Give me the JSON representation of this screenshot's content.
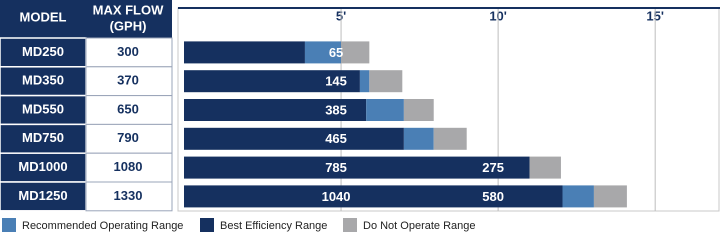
{
  "chart_data": {
    "type": "bar",
    "orientation": "horizontal",
    "stacked": true,
    "model_header": "MODEL",
    "max_flow_header": [
      "MAX FLOW",
      "(GPH)"
    ],
    "categories": [
      "MD250",
      "MD350",
      "MD550",
      "MD750",
      "MD1000",
      "MD1250"
    ],
    "max_flow": [
      300,
      370,
      650,
      790,
      1080,
      1330
    ],
    "series": [
      {
        "name": "Recommended Operating Range",
        "color": "#4a7fb5",
        "values": [
          1.15,
          0.3,
          1.2,
          0.95,
          0,
          1.0
        ]
      },
      {
        "name": "Best Efficiency Range",
        "color": "#15305f",
        "values": [
          3.85,
          5.6,
          5.8,
          7.0,
          11.0,
          12.05
        ]
      },
      {
        "name": "Do Not Operate Range",
        "color": "#a8a8aa",
        "values": [
          0.9,
          1.05,
          0.95,
          1.05,
          1.0,
          1.05
        ]
      }
    ],
    "flow_at_ticks": [
      [
        65,
        null
      ],
      [
        145,
        null
      ],
      [
        385,
        null
      ],
      [
        465,
        null
      ],
      [
        785,
        275
      ],
      [
        1040,
        580
      ]
    ],
    "xlim": [
      0,
      17
    ],
    "xticks": [
      {
        "value": 5,
        "label": "5'"
      },
      {
        "value": 10,
        "label": "10'"
      },
      {
        "value": 15,
        "label": "15'"
      }
    ],
    "grid": true
  }
}
